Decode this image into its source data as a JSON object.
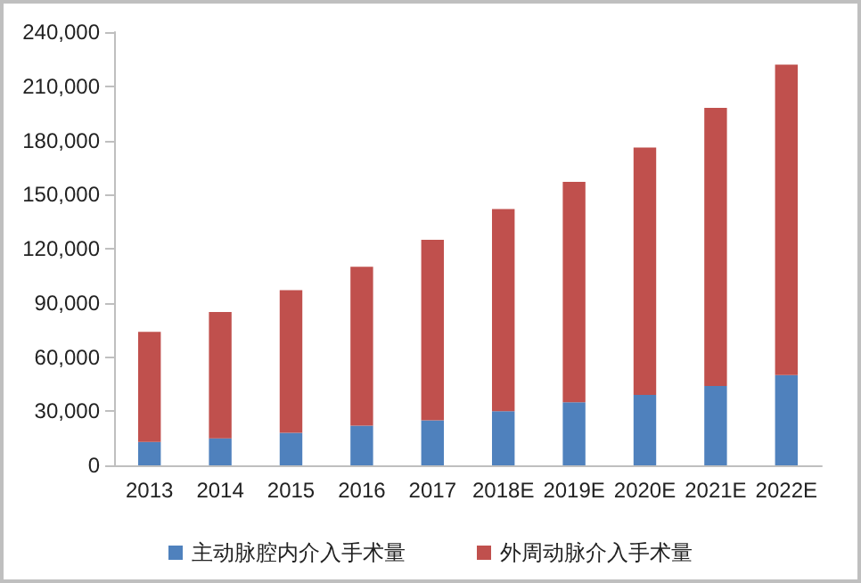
{
  "chart_data": {
    "type": "bar",
    "stacked": true,
    "categories": [
      "2013",
      "2014",
      "2015",
      "2016",
      "2017",
      "2018E",
      "2019E",
      "2020E",
      "2021E",
      "2022E"
    ],
    "series": [
      {
        "name": "主动脉腔内介入手术量",
        "color": "#4f81bd",
        "values": [
          13000,
          15000,
          18000,
          22000,
          25000,
          30000,
          35000,
          39000,
          44000,
          50000
        ]
      },
      {
        "name": "外周动脉介入手术量",
        "color": "#c0504d",
        "values": [
          61000,
          70000,
          79000,
          88000,
          100000,
          112000,
          122000,
          137000,
          154000,
          172000
        ]
      }
    ],
    "ylim": [
      0,
      240000
    ],
    "yticks": [
      0,
      {
        "value": 30000,
        "label": "30,000"
      },
      {
        "value": 60000,
        "label": "60,000"
      },
      {
        "value": 90000,
        "label": "90,000"
      },
      {
        "value": 120000,
        "label": "120,000"
      },
      {
        "value": 150000,
        "label": "150,000"
      },
      {
        "value": 180000,
        "label": "180,000"
      },
      {
        "value": 210000,
        "label": "210,000"
      },
      {
        "value": 240000,
        "label": "240,000"
      }
    ],
    "grid": false,
    "legend": "bottom"
  }
}
